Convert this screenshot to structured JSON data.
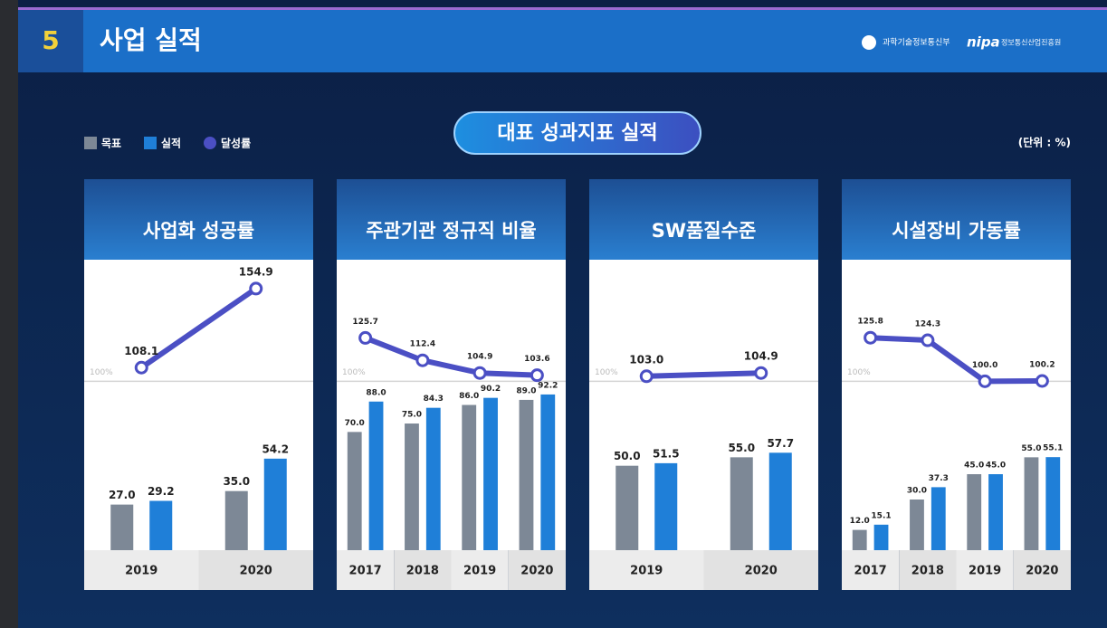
{
  "header": {
    "number": "5",
    "title": "사업 실적",
    "logos": [
      "과학기술정보통신부",
      "nipa",
      "정보통신산업진흥원"
    ]
  },
  "subtitle": "대표 성과지표 실적",
  "unit": "(단위 : %)",
  "legend": [
    {
      "name": "목표",
      "color": "#7d8896"
    },
    {
      "name": "실적",
      "color": "#1f7fd8"
    },
    {
      "name": "달성률",
      "color": "#4b4fc4"
    }
  ],
  "chart_data": [
    {
      "type": "combo",
      "title": "사업화 성공률",
      "categories": [
        "2019",
        "2020"
      ],
      "ylim": [
        0,
        172
      ],
      "reference": {
        "value": 100,
        "label": "100%"
      },
      "series": [
        {
          "kind": "bar",
          "values": [
            27.0,
            35.0
          ],
          "value_labels": [
            "27.0",
            "35.0"
          ]
        },
        {
          "kind": "bar",
          "values": [
            29.2,
            54.2
          ],
          "value_labels": [
            "29.2",
            "54.2"
          ]
        },
        {
          "kind": "line",
          "values": [
            108.1,
            154.9
          ],
          "value_labels": [
            "108.1",
            "154.9"
          ]
        }
      ]
    },
    {
      "type": "combo",
      "title": "주관기관 정규직 비율",
      "categories": [
        "2017",
        "2018",
        "2019",
        "2020"
      ],
      "ylim": [
        0,
        172
      ],
      "reference": {
        "value": 100,
        "label": "100%"
      },
      "series": [
        {
          "kind": "bar",
          "values": [
            70.0,
            75.0,
            86.0,
            89.0
          ],
          "value_labels": [
            "70.0",
            "75.0",
            "86.0",
            "89.0"
          ]
        },
        {
          "kind": "bar",
          "values": [
            88.0,
            84.3,
            90.2,
            92.2
          ],
          "value_labels": [
            "88.0",
            "84.3",
            "90.2",
            "92.2"
          ]
        },
        {
          "kind": "line",
          "values": [
            125.7,
            112.4,
            104.9,
            103.6
          ],
          "value_labels": [
            "125.7",
            "112.4",
            "104.9",
            "103.6"
          ]
        }
      ]
    },
    {
      "type": "combo",
      "title": "SW품질수준",
      "categories": [
        "2019",
        "2020"
      ],
      "ylim": [
        0,
        172
      ],
      "reference": {
        "value": 100,
        "label": "100%"
      },
      "series": [
        {
          "kind": "bar",
          "values": [
            50.0,
            55.0
          ],
          "value_labels": [
            "50.0",
            "55.0"
          ]
        },
        {
          "kind": "bar",
          "values": [
            51.5,
            57.7
          ],
          "value_labels": [
            "51.5",
            "57.7"
          ]
        },
        {
          "kind": "line",
          "values": [
            103.0,
            104.9
          ],
          "value_labels": [
            "103.0",
            "104.9"
          ]
        }
      ]
    },
    {
      "type": "combo",
      "title": "시설장비 가동률",
      "categories": [
        "2017",
        "2018",
        "2019",
        "2020"
      ],
      "ylim": [
        0,
        172
      ],
      "reference": {
        "value": 100,
        "label": "100%"
      },
      "series": [
        {
          "kind": "bar",
          "values": [
            12.0,
            30.0,
            45.0,
            55.0
          ],
          "value_labels": [
            "12.0",
            "30.0",
            "45.0",
            "55.0"
          ]
        },
        {
          "kind": "bar",
          "values": [
            15.1,
            37.3,
            45.0,
            55.1
          ],
          "value_labels": [
            "15.1",
            "37.3",
            "45.0",
            "55.1"
          ]
        },
        {
          "kind": "line",
          "values": [
            125.8,
            124.3,
            100.0,
            100.2
          ],
          "value_labels": [
            "125.8",
            "124.3",
            "100.0",
            "100.2"
          ]
        }
      ]
    }
  ]
}
